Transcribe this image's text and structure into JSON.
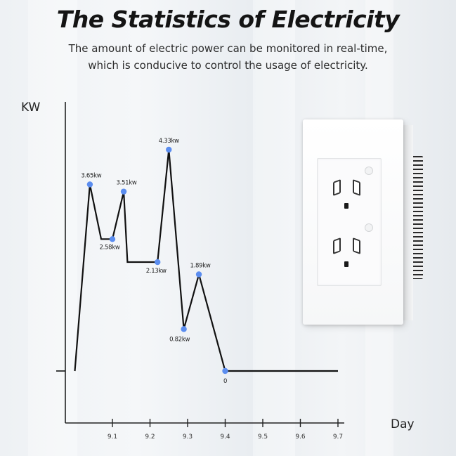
{
  "header": {
    "title": "The Statistics of Electricity",
    "subtitle_line1": "The amount of electric power can be monitored in real-time,",
    "subtitle_line2": "which is conducive to control the usage of electricity."
  },
  "colors": {
    "line": "#111111",
    "marker": "#5b8def",
    "axis": "#222222"
  },
  "chart_data": {
    "type": "line",
    "xlabel": "Day",
    "ylabel": "KW",
    "x_ticks": [
      "9.1",
      "9.2",
      "9.3",
      "9.4",
      "9.5",
      "9.6",
      "9.7"
    ],
    "points": [
      {
        "x": 9.0,
        "y": 0
      },
      {
        "x": 9.04,
        "y": 3.65,
        "label": "3.65kw"
      },
      {
        "x": 9.07,
        "y": 2.58
      },
      {
        "x": 9.1,
        "y": 2.58,
        "label": "2.58kw"
      },
      {
        "x": 9.13,
        "y": 3.51,
        "label": "3.51kw"
      },
      {
        "x": 9.14,
        "y": 2.13
      },
      {
        "x": 9.22,
        "y": 2.13,
        "label": "2.13kw"
      },
      {
        "x": 9.25,
        "y": 4.33,
        "label": "4.33kw"
      },
      {
        "x": 9.29,
        "y": 0.82,
        "label": "0.82kw"
      },
      {
        "x": 9.33,
        "y": 1.89,
        "label": "1.89kw"
      },
      {
        "x": 9.4,
        "y": 0,
        "label": "0"
      },
      {
        "x": 9.7,
        "y": 0
      }
    ],
    "grid": false,
    "legend": "none"
  },
  "product": {
    "name": "wall-socket"
  }
}
